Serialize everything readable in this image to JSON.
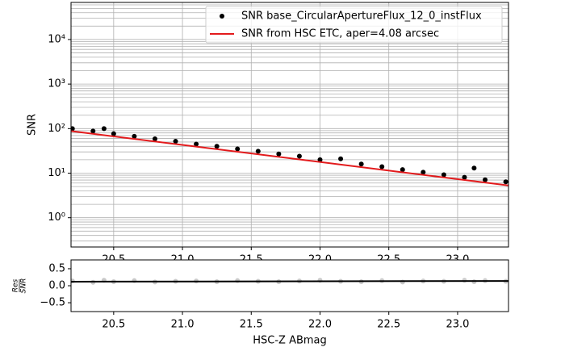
{
  "chart_data": [
    {
      "type": "scatter",
      "ylabel": "SNR",
      "yscale": "log",
      "grid": true,
      "legend": "upper right",
      "xlim": [
        20.19,
        23.37
      ],
      "ylim": [
        0.22,
        68000
      ],
      "xticks": [
        20.5,
        {
          "value": 21,
          "label": "21.0"
        },
        21.5,
        {
          "value": 22,
          "label": "22.0"
        },
        22.5,
        {
          "value": 23,
          "label": "23.0"
        }
      ],
      "yticks": [
        {
          "value": 1,
          "label": "10⁰"
        },
        {
          "value": 10,
          "label": "10¹"
        },
        {
          "value": 100,
          "label": "10²"
        },
        {
          "value": 1000,
          "label": "10³"
        },
        {
          "value": 10000,
          "label": "10⁴"
        }
      ],
      "yminorticks": [
        0.3,
        0.4,
        0.5,
        0.6,
        0.7,
        0.8,
        0.9,
        2,
        3,
        4,
        5,
        6,
        7,
        8,
        9,
        20,
        30,
        40,
        50,
        60,
        70,
        80,
        90,
        200,
        300,
        400,
        500,
        600,
        700,
        800,
        900,
        2000,
        3000,
        4000,
        5000,
        6000,
        7000,
        8000,
        9000,
        20000,
        30000,
        40000,
        50000,
        60000
      ],
      "series": [
        {
          "name": "SNR base_CircularApertureFlux_12_0_instFlux",
          "type": "scatter",
          "color": "#000000",
          "x": [
            20.2,
            20.35,
            20.43,
            20.5,
            20.65,
            20.8,
            20.95,
            21.1,
            21.25,
            21.4,
            21.55,
            21.7,
            21.85,
            22.0,
            22.15,
            22.3,
            22.45,
            22.6,
            22.75,
            22.9,
            23.05,
            23.12,
            23.2,
            23.35
          ],
          "values": [
            100,
            88,
            100,
            77,
            67,
            59,
            52,
            45,
            40,
            35,
            31,
            27,
            24,
            20,
            21,
            16,
            14,
            12,
            10.5,
            9.2,
            8.1,
            13,
            7.1,
            6.4
          ]
        },
        {
          "name": "SNR from HSC ETC, aper=4.08 arcsec",
          "type": "line",
          "color": "#e31a1c",
          "x": [
            20.19,
            23.37
          ],
          "values": [
            88,
            5.3
          ]
        }
      ]
    },
    {
      "type": "scatter",
      "ylabel_num": "Res",
      "ylabel_den": "SNR",
      "xlabel": "HSC-Z ABmag",
      "yscale": "linear",
      "grid": false,
      "xlim": [
        20.19,
        23.37
      ],
      "ylim": [
        -0.76,
        0.76
      ],
      "xticks": [
        20.5,
        {
          "value": 21,
          "label": "21.0"
        },
        21.5,
        {
          "value": 22,
          "label": "22.0"
        },
        22.5,
        {
          "value": 23,
          "label": "23.0"
        }
      ],
      "yticks": [
        {
          "value": -0.5,
          "label": "−0.5"
        },
        {
          "value": 0,
          "label": "0.0"
        },
        0.5
      ],
      "series": [
        {
          "type": "scatter",
          "color": "#c8c8c8",
          "x": [
            20.2,
            20.35,
            20.43,
            20.5,
            20.65,
            20.8,
            20.95,
            21.1,
            21.25,
            21.4,
            21.55,
            21.7,
            21.85,
            22.0,
            22.15,
            22.3,
            22.45,
            22.6,
            22.75,
            22.9,
            23.05,
            23.12,
            23.2,
            23.35
          ],
          "values": [
            0.14,
            0.1,
            0.16,
            0.12,
            0.15,
            0.11,
            0.13,
            0.14,
            0.12,
            0.15,
            0.13,
            0.12,
            0.14,
            0.16,
            0.13,
            0.12,
            0.15,
            0.11,
            0.14,
            0.13,
            0.16,
            0.12,
            0.15,
            0.13
          ]
        },
        {
          "type": "line",
          "color": "#000000",
          "x": [
            20.19,
            23.37
          ],
          "values": [
            0.12,
            0.14
          ]
        }
      ]
    }
  ]
}
